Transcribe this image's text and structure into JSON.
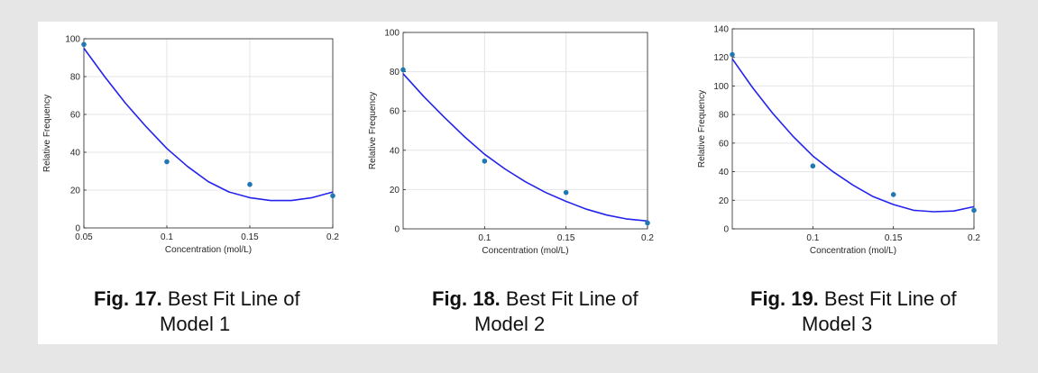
{
  "colors": {
    "curve": "#2323ee",
    "points": "#1f77b4",
    "grid": "#e4e4e4",
    "axis": "#262626"
  },
  "chart_data": [
    {
      "type": "scatter",
      "xlabel": "Concentration (mol/L)",
      "ylabel": "Relative Frequency",
      "xlim": [
        0.05,
        0.2
      ],
      "ylim": [
        0,
        100
      ],
      "xticks": [
        0.05,
        0.1,
        0.15,
        0.2
      ],
      "xtick_labels": [
        "0.05",
        "0.1",
        "0.15",
        "0.2"
      ],
      "yticks": [
        0,
        20,
        40,
        60,
        80,
        100
      ],
      "ytick_labels": [
        "0",
        "20",
        "40",
        "60",
        "80",
        "100"
      ],
      "grid": true,
      "points": {
        "x": [
          0.05,
          0.1,
          0.15,
          0.2
        ],
        "y": [
          97,
          35,
          23,
          17
        ]
      },
      "fit_curve": {
        "x": [
          0.05,
          0.0625,
          0.075,
          0.0875,
          0.1,
          0.1125,
          0.125,
          0.1375,
          0.15,
          0.1625,
          0.175,
          0.1875,
          0.2
        ],
        "y": [
          95,
          80,
          66,
          53.5,
          42,
          32.5,
          24.5,
          19,
          16,
          14.5,
          14.5,
          16,
          19
        ]
      },
      "caption_fig": "Fig. 17.",
      "caption_rest": " Best Fit Line of",
      "caption_line2": "Model 1"
    },
    {
      "type": "scatter",
      "xlabel": "Concentration (mol/L)",
      "ylabel": "Relative Frequency",
      "xlim": [
        0.05,
        0.2
      ],
      "ylim": [
        0,
        100
      ],
      "xticks": [
        0.1,
        0.15,
        0.2
      ],
      "xtick_labels": [
        "0.1",
        "0.15",
        "0.2"
      ],
      "yticks": [
        0,
        20,
        40,
        60,
        80,
        100
      ],
      "ytick_labels": [
        "0",
        "20",
        "40",
        "60",
        "80",
        "100"
      ],
      "grid": true,
      "points": {
        "x": [
          0.05,
          0.1,
          0.15,
          0.2
        ],
        "y": [
          81,
          34.5,
          18.5,
          3
        ]
      },
      "fit_curve": {
        "x": [
          0.05,
          0.0625,
          0.075,
          0.0875,
          0.1,
          0.1125,
          0.125,
          0.1375,
          0.15,
          0.1625,
          0.175,
          0.1875,
          0.2
        ],
        "y": [
          79,
          67.5,
          57,
          47,
          38,
          30.5,
          24,
          18.5,
          14,
          10,
          7,
          5,
          4
        ]
      },
      "caption_fig": "Fig. 18.",
      "caption_rest": " Best Fit Line of",
      "caption_line2": "Model 2"
    },
    {
      "type": "scatter",
      "xlabel": "Concentration (mol/L)",
      "ylabel": "Relative Frequency",
      "xlim": [
        0.05,
        0.2
      ],
      "ylim": [
        0,
        140
      ],
      "xticks": [
        0.1,
        0.15,
        0.2
      ],
      "xtick_labels": [
        "0.1",
        "0.15",
        "0.2"
      ],
      "yticks": [
        0,
        20,
        40,
        60,
        80,
        100,
        120,
        140
      ],
      "ytick_labels": [
        "0",
        "20",
        "40",
        "60",
        "80",
        "100",
        "120",
        "140"
      ],
      "grid": true,
      "points": {
        "x": [
          0.05,
          0.1,
          0.15,
          0.2
        ],
        "y": [
          122,
          44,
          24,
          13
        ]
      },
      "fit_curve": {
        "x": [
          0.05,
          0.0625,
          0.075,
          0.0875,
          0.1,
          0.1125,
          0.125,
          0.1375,
          0.15,
          0.1625,
          0.175,
          0.1875,
          0.2
        ],
        "y": [
          119,
          99,
          81,
          65,
          51,
          40,
          30.5,
          22.5,
          17,
          13,
          12,
          12.5,
          15.5
        ]
      },
      "caption_fig": "Fig. 19.",
      "caption_rest": " Best Fit Line of",
      "caption_line2": "Model 3"
    }
  ]
}
